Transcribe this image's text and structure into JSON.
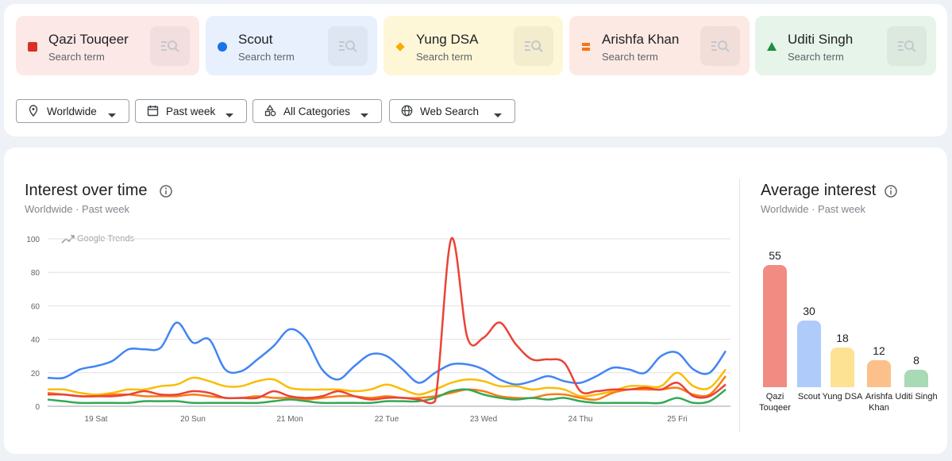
{
  "terms": [
    {
      "name": "Qazi Touqeer",
      "sub": "Search term",
      "color": "#d93025",
      "marker": "square",
      "bg": "#fde8e8"
    },
    {
      "name": "Scout",
      "sub": "Search term",
      "color": "#1a73e8",
      "marker": "circle",
      "bg": "#e8f0fe"
    },
    {
      "name": "Yung DSA",
      "sub": "Search term",
      "color": "#f9ab00",
      "marker": "diamond",
      "bg": "#fef7d7"
    },
    {
      "name": "Arishfa Khan",
      "sub": "Search term",
      "color": "#f97316",
      "marker": "pill",
      "bg": "#fde9e3"
    },
    {
      "name": "Uditi Singh",
      "sub": "Search term",
      "color": "#1e8e3e",
      "marker": "triangle",
      "bg": "#e6f4ea"
    }
  ],
  "filters": [
    {
      "label": "Worldwide",
      "icon": "pin"
    },
    {
      "label": "Past week",
      "icon": "calendar"
    },
    {
      "label": "All Categories",
      "icon": "shapes"
    },
    {
      "label": "Web Search",
      "icon": "globe"
    }
  ],
  "chart_data": [
    {
      "type": "line",
      "title": "Interest over time",
      "subtitle": "Worldwide · Past week",
      "annotation": "Google Trends",
      "categories": [
        null,
        null,
        null,
        "19 Sat",
        null,
        null,
        null,
        null,
        null,
        "20 Sun",
        null,
        null,
        null,
        null,
        null,
        "21 Mon",
        null,
        null,
        null,
        null,
        null,
        "22 Tue",
        null,
        null,
        null,
        null,
        null,
        "23 Wed",
        null,
        null,
        null,
        null,
        null,
        "24 Thu",
        null,
        null,
        null,
        null,
        null,
        "25 Fri",
        null,
        null,
        null
      ],
      "ylim": [
        0,
        100
      ],
      "yticks": [
        0,
        20,
        40,
        60,
        80,
        100
      ],
      "grid": true,
      "series": [
        {
          "color": "#4285f4",
          "values": [
            17,
            17,
            22,
            24,
            27,
            34,
            34,
            35,
            50,
            38,
            40,
            22,
            21,
            28,
            36,
            46,
            40,
            22,
            16,
            24,
            31,
            30,
            22,
            14,
            20,
            25,
            25,
            22,
            16,
            13,
            15,
            18,
            15,
            14,
            18,
            23,
            22,
            20,
            30,
            32,
            22,
            20,
            33
          ]
        },
        {
          "color": "#fbbc04",
          "values": [
            10,
            10,
            8,
            7,
            8,
            10,
            10,
            12,
            13,
            17,
            15,
            12,
            12,
            15,
            16,
            11,
            10,
            10,
            10,
            9,
            10,
            13,
            10,
            7,
            10,
            14,
            16,
            15,
            12,
            12,
            10,
            11,
            10,
            6,
            7,
            9,
            12,
            12,
            12,
            20,
            12,
            11,
            22
          ]
        },
        {
          "color": "#fa7b17",
          "values": [
            8,
            7,
            6,
            6,
            7,
            7,
            6,
            6,
            6,
            7,
            6,
            5,
            5,
            6,
            5,
            5,
            4,
            5,
            6,
            6,
            5,
            6,
            5,
            5,
            6,
            8,
            10,
            9,
            6,
            5,
            5,
            7,
            7,
            5,
            4,
            8,
            10,
            10,
            10,
            11,
            7,
            7,
            18
          ]
        },
        {
          "color": "#34a853",
          "values": [
            4,
            3,
            2,
            2,
            2,
            2,
            3,
            3,
            3,
            2,
            2,
            2,
            2,
            2,
            3,
            4,
            3,
            2,
            2,
            2,
            2,
            3,
            3,
            3,
            5,
            9,
            10,
            7,
            5,
            4,
            5,
            4,
            5,
            3,
            2,
            2,
            2,
            2,
            2,
            5,
            2,
            3,
            10
          ]
        },
        {
          "color": "#ea4335",
          "values": [
            7,
            7,
            6,
            6,
            6,
            7,
            9,
            7,
            7,
            9,
            8,
            5,
            5,
            5,
            9,
            6,
            5,
            6,
            9,
            6,
            4,
            5,
            5,
            4,
            3,
            100,
            41,
            41,
            50,
            37,
            28,
            28,
            26,
            9,
            9,
            10,
            10,
            11,
            10,
            14,
            6,
            6,
            13
          ]
        }
      ]
    },
    {
      "type": "bar",
      "title": "Average interest",
      "subtitle": "Worldwide · Past week",
      "categories": [
        "Qazi Touqeer",
        "Scout",
        "Yung DSA",
        "Arishfa Khan",
        "Uditi Singh"
      ],
      "values": [
        55,
        30,
        18,
        12,
        8
      ],
      "colors": [
        "#f28b82",
        "#aecbfa",
        "#fde293",
        "#fcc18a",
        "#a8dab5"
      ]
    }
  ]
}
